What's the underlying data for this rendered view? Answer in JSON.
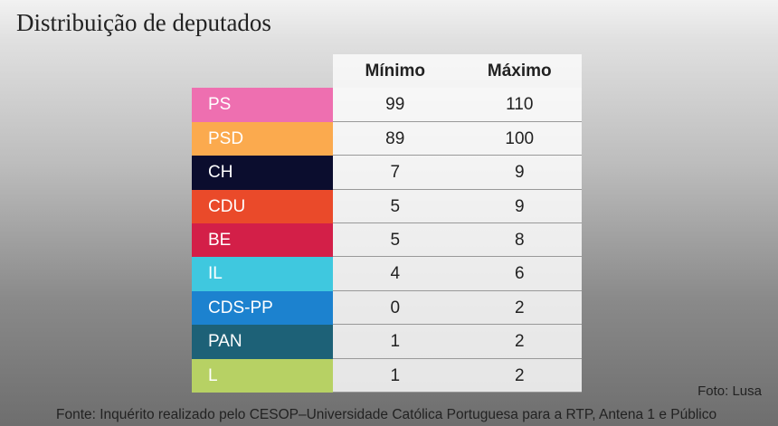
{
  "header": {
    "title": "Distribuição de deputados"
  },
  "table": {
    "columns": [
      "Mínimo",
      "Máximo"
    ],
    "rows": [
      {
        "party": "PS",
        "color": "#ee6fb0",
        "min": 99,
        "max": 110
      },
      {
        "party": "PSD",
        "color": "#fbaa4e",
        "min": 89,
        "max": 100
      },
      {
        "party": "CH",
        "color": "#0b0d2e",
        "min": 7,
        "max": 9
      },
      {
        "party": "CDU",
        "color": "#ea4a2a",
        "min": 5,
        "max": 9
      },
      {
        "party": "BE",
        "color": "#d31f48",
        "min": 5,
        "max": 8
      },
      {
        "party": "IL",
        "color": "#3fc8df",
        "min": 4,
        "max": 6
      },
      {
        "party": "CDS-PP",
        "color": "#1c82cf",
        "min": 0,
        "max": 2
      },
      {
        "party": "PAN",
        "color": "#1d6177",
        "min": 1,
        "max": 2
      },
      {
        "party": "L",
        "color": "#b7d164",
        "min": 1,
        "max": 2
      }
    ]
  },
  "footer": {
    "credit": "Foto: Lusa",
    "source": "Fonte: Inquérito realizado pelo CESOP–Universidade Católica Portuguesa para a RTP, Antena 1 e Público"
  }
}
